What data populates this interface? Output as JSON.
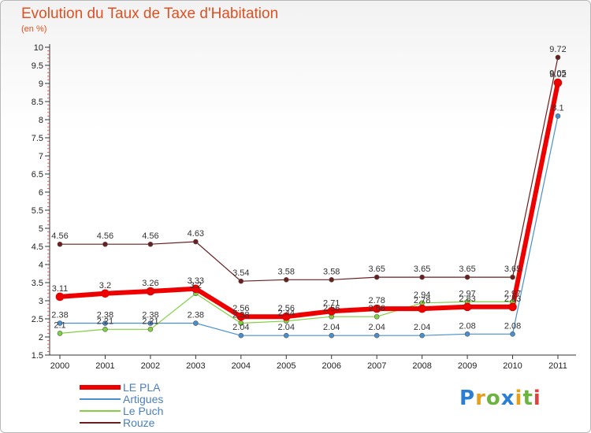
{
  "chart_data": {
    "type": "line",
    "title": "Evolution du Taux de Taxe d'Habitation",
    "subtitle": "(en %)",
    "xlabel": "",
    "ylabel": "",
    "x": [
      "2000",
      "2001",
      "2002",
      "2003",
      "2004",
      "2005",
      "2006",
      "2007",
      "2008",
      "2009",
      "2010",
      "2011"
    ],
    "ylim": [
      1.5,
      10
    ],
    "yticks": [
      1.5,
      2,
      2.5,
      3,
      3.5,
      4,
      4.5,
      5,
      5.5,
      6,
      6.5,
      7,
      7.5,
      8,
      8.5,
      9,
      9.5,
      10
    ],
    "grid": false,
    "legend_position": "bottom-left",
    "series": [
      {
        "name": "Rouze",
        "color": "#6b1e1e",
        "width": 1.2,
        "marker": 3,
        "values": [
          4.56,
          4.56,
          4.56,
          4.63,
          3.54,
          3.58,
          3.58,
          3.65,
          3.65,
          3.65,
          3.65,
          9.72
        ],
        "labels": [
          "4.56",
          "4.56",
          "4.56",
          "4.63",
          "3.54",
          "3.58",
          "3.58",
          "3.65",
          "3.65",
          "3.65",
          "3.65",
          "9.72"
        ]
      },
      {
        "name": "Artigues",
        "color": "#4a8fcc",
        "width": 1.2,
        "marker": 3,
        "values": [
          2.38,
          2.38,
          2.38,
          2.38,
          2.04,
          2.04,
          2.04,
          2.04,
          2.04,
          2.08,
          2.08,
          8.1
        ],
        "labels": [
          "2.38",
          "2.38",
          "2.38",
          "2.38",
          "2.04",
          "2.04",
          "2.04",
          "2.04",
          "2.04",
          "2.08",
          "2.08",
          "8.1"
        ]
      },
      {
        "name": "Le Puch",
        "color": "#80d040",
        "width": 1.2,
        "marker": 3,
        "values": [
          2.1,
          2.21,
          2.21,
          3.2,
          2.38,
          2.44,
          2.56,
          2.56,
          2.94,
          2.97,
          2.97,
          9.05
        ],
        "labels": [
          "2.1",
          "2.21",
          "2.21",
          "3.2",
          "2.38",
          "2.44",
          "2.56",
          "2.56",
          "2.94",
          "2.97",
          "2.97",
          "9.05"
        ]
      },
      {
        "name": "LE PLA",
        "color": "#ee0000",
        "width": 6,
        "marker": 5,
        "values": [
          3.11,
          3.2,
          3.26,
          3.33,
          2.56,
          2.56,
          2.71,
          2.78,
          2.78,
          2.83,
          2.83,
          9.02
        ],
        "labels": [
          "3.11",
          "3.2",
          "3.26",
          "3.33",
          "2.56",
          "2.56",
          "2.71",
          "2.78",
          "2.78",
          "2.83",
          "2.83",
          "9.02"
        ]
      }
    ]
  },
  "legend": {
    "items": [
      {
        "label": "LE PLA",
        "color": "#ee0000",
        "thick": 6
      },
      {
        "label": "Artigues",
        "color": "#4a8fcc",
        "thick": 2
      },
      {
        "label": "Le Puch",
        "color": "#80d040",
        "thick": 2
      },
      {
        "label": "Rouze",
        "color": "#6b1e1e",
        "thick": 2
      }
    ]
  },
  "logo": {
    "text": "Proxiti",
    "letters": [
      "P",
      "r",
      "o",
      "x",
      "i",
      "t",
      "i"
    ],
    "colors": [
      "#2a7fd4",
      "#e5a020",
      "#6cb33f",
      "#2a7fd4",
      "#e5a020",
      "#6cb33f",
      "#e04040"
    ]
  }
}
